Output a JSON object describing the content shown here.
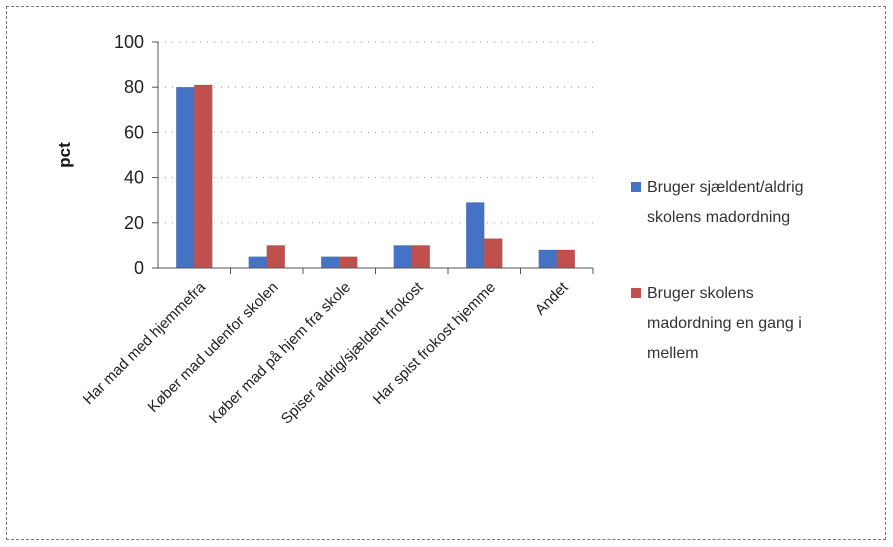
{
  "chart_data": {
    "type": "bar",
    "ylabel": "pct",
    "ylim": [
      0,
      100
    ],
    "yticks": [
      0,
      20,
      40,
      60,
      80,
      100
    ],
    "grid": true,
    "legend_position": "right",
    "categories": [
      "Har mad med hjemmefra",
      "Køber mad udenfor skolen",
      "Køber mad på hjem fra skole",
      "Spiser aldrig/sjældent frokost",
      "Har spist frokost hjemme",
      "Andet"
    ],
    "series": [
      {
        "name": "Bruger sjældent/aldrig skolens madordning",
        "legend_lines": [
          "Bruger sjældent/aldrig",
          "skolens madordning"
        ],
        "color": "#4472C4",
        "values": [
          80,
          5,
          5,
          10,
          29,
          8
        ]
      },
      {
        "name": "Bruger skolens madordning en gang i mellem",
        "legend_lines": [
          "Bruger skolens",
          "madordning en gang i",
          "mellem"
        ],
        "color": "#C0504D",
        "values": [
          81,
          10,
          5,
          10,
          13,
          8
        ]
      }
    ]
  }
}
